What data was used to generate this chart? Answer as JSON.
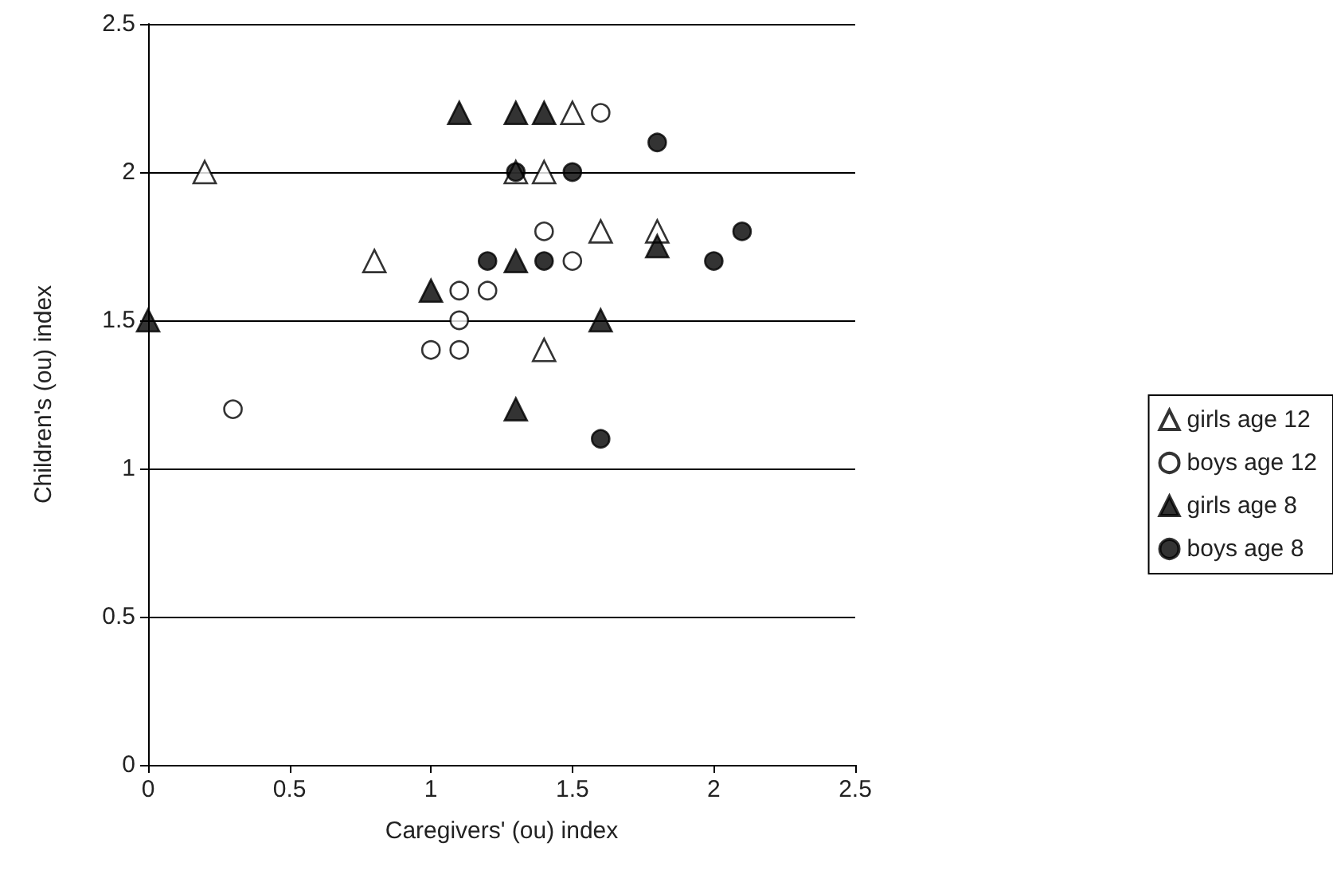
{
  "chart_data": {
    "type": "scatter",
    "xlabel": "Caregivers' (ou) index",
    "ylabel": "Children's (ou) index",
    "xlim": [
      0,
      2.5
    ],
    "xticks": [
      0,
      0.5,
      1,
      1.5,
      2,
      2.5
    ],
    "ylim": [
      0,
      2.5
    ],
    "yticks": [
      0,
      0.5,
      1,
      1.5,
      2,
      2.5
    ],
    "grid": "y",
    "legend": "right",
    "series": [
      {
        "name": "girls age 12",
        "color": "#ffffff",
        "marker": "triangle",
        "x": [
          0.2,
          0.8,
          1.3,
          1.4,
          1.5,
          1.4,
          1.6,
          1.8
        ],
        "values": [
          2.0,
          1.7,
          2.0,
          2.0,
          2.2,
          1.4,
          1.8,
          1.8
        ]
      },
      {
        "name": "boys age 12",
        "color": "#ffffff",
        "marker": "circle",
        "x": [
          0.3,
          1.0,
          1.1,
          1.1,
          1.1,
          1.2,
          1.4,
          1.5,
          1.6
        ],
        "values": [
          1.2,
          1.4,
          1.4,
          1.5,
          1.6,
          1.6,
          1.8,
          1.7,
          2.2
        ]
      },
      {
        "name": "girls age 8",
        "color": "#000000",
        "marker": "triangle",
        "x": [
          0,
          1.0,
          1.1,
          1.3,
          1.4,
          1.3,
          1.3,
          1.6,
          1.8
        ],
        "values": [
          1.5,
          1.6,
          2.2,
          2.2,
          2.2,
          1.7,
          1.2,
          1.5,
          1.75
        ]
      },
      {
        "name": "boys age 8",
        "color": "#000000",
        "marker": "circle",
        "x": [
          1.2,
          1.3,
          1.4,
          1.5,
          1.8,
          1.6,
          2.0,
          2.1
        ],
        "values": [
          1.7,
          2.0,
          1.7,
          2.0,
          2.1,
          1.1,
          1.7,
          1.8
        ]
      }
    ]
  }
}
